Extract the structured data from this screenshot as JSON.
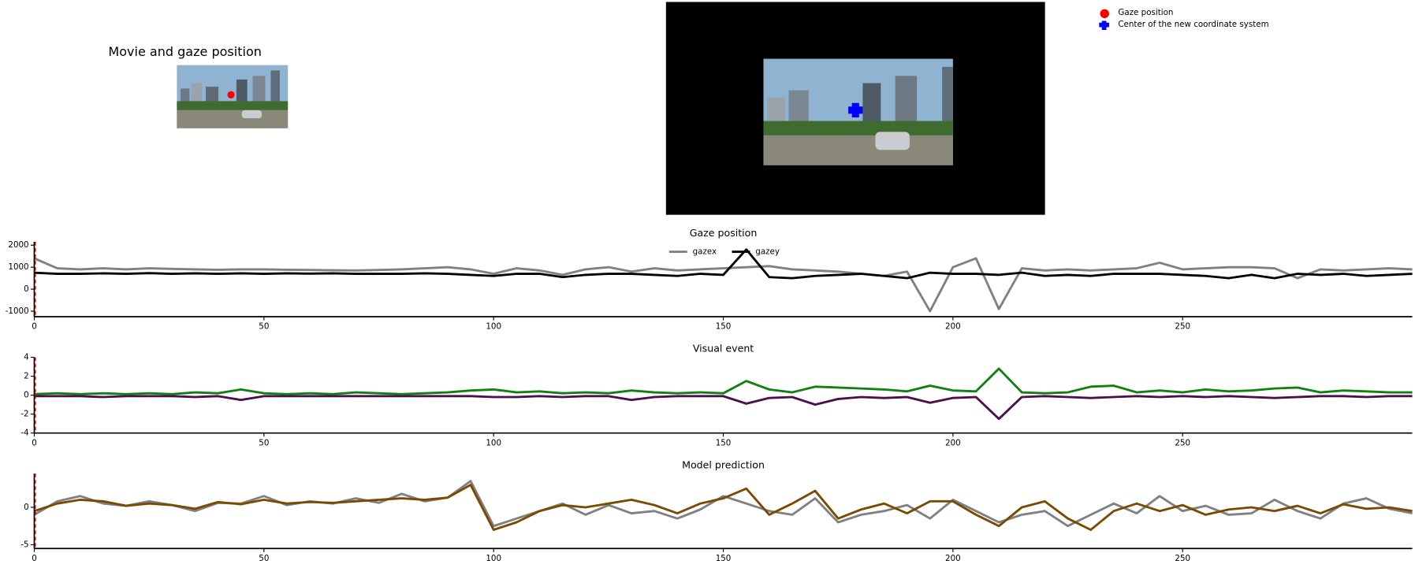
{
  "panels": {
    "movie_title": "Movie and gaze position",
    "legend": [
      "Gaze position",
      "Center of the new coordinate system"
    ]
  },
  "chart_data": [
    {
      "type": "line",
      "title": "Gaze position",
      "legend": "upper center",
      "x": [
        0,
        5,
        10,
        15,
        20,
        25,
        30,
        35,
        40,
        45,
        50,
        55,
        60,
        65,
        70,
        75,
        80,
        85,
        90,
        95,
        100,
        105,
        110,
        115,
        120,
        125,
        130,
        135,
        140,
        145,
        150,
        155,
        160,
        165,
        170,
        175,
        180,
        185,
        190,
        195,
        200,
        205,
        210,
        215,
        220,
        225,
        230,
        235,
        240,
        245,
        250,
        255,
        260,
        265,
        270,
        275,
        280,
        285,
        290,
        295,
        300
      ],
      "xlim": [
        0,
        300
      ],
      "xticks": [
        0,
        50,
        100,
        150,
        200,
        250
      ],
      "ylim": [
        -1250,
        2150
      ],
      "yticks": [
        -1000,
        0,
        1000,
        2000
      ],
      "series": [
        {
          "name": "gazex",
          "color": "#808080",
          "values": [
            1400,
            950,
            900,
            950,
            900,
            950,
            920,
            900,
            880,
            900,
            900,
            880,
            870,
            860,
            850,
            870,
            900,
            950,
            1000,
            900,
            700,
            950,
            850,
            650,
            900,
            1000,
            800,
            950,
            850,
            900,
            950,
            1000,
            1050,
            900,
            850,
            800,
            700,
            600,
            800,
            -1000,
            1000,
            1400,
            -900,
            950,
            850,
            900,
            850,
            900,
            950,
            1200,
            900,
            950,
            1000,
            1000,
            950,
            500,
            900,
            850,
            900,
            950,
            900
          ]
        },
        {
          "name": "gazey",
          "color": "#000000",
          "values": [
            750,
            700,
            700,
            720,
            700,
            730,
            700,
            720,
            700,
            720,
            700,
            720,
            710,
            720,
            700,
            700,
            700,
            720,
            700,
            650,
            600,
            700,
            700,
            550,
            650,
            700,
            700,
            650,
            600,
            700,
            650,
            1800,
            550,
            500,
            600,
            650,
            700,
            600,
            500,
            750,
            700,
            700,
            650,
            750,
            600,
            650,
            600,
            700,
            700,
            700,
            650,
            600,
            500,
            650,
            500,
            700,
            650,
            700,
            600,
            650,
            700
          ]
        }
      ]
    },
    {
      "type": "line",
      "title": "Visual event",
      "x": [
        0,
        5,
        10,
        15,
        20,
        25,
        30,
        35,
        40,
        45,
        50,
        55,
        60,
        65,
        70,
        75,
        80,
        85,
        90,
        95,
        100,
        105,
        110,
        115,
        120,
        125,
        130,
        135,
        140,
        145,
        150,
        155,
        160,
        165,
        170,
        175,
        180,
        185,
        190,
        195,
        200,
        205,
        210,
        215,
        220,
        225,
        230,
        235,
        240,
        245,
        250,
        255,
        260,
        265,
        270,
        275,
        280,
        285,
        290,
        295,
        300
      ],
      "xlim": [
        0,
        300
      ],
      "xticks": [
        0,
        50,
        100,
        150,
        200,
        250
      ],
      "ylim": [
        -4,
        4
      ],
      "yticks": [
        -4,
        -2,
        0,
        2,
        4
      ],
      "series": [
        {
          "color": "#4b0f4b",
          "values": [
            -0.1,
            -0.1,
            -0.1,
            -0.2,
            -0.1,
            -0.1,
            -0.1,
            -0.2,
            -0.1,
            -0.5,
            -0.1,
            -0.1,
            -0.1,
            -0.1,
            -0.1,
            -0.1,
            -0.1,
            -0.1,
            -0.1,
            -0.1,
            -0.2,
            -0.2,
            -0.1,
            -0.2,
            -0.1,
            -0.1,
            -0.5,
            -0.2,
            -0.1,
            -0.1,
            -0.1,
            -0.9,
            -0.3,
            -0.2,
            -1.0,
            -0.4,
            -0.2,
            -0.3,
            -0.2,
            -0.8,
            -0.3,
            -0.2,
            -2.5,
            -0.2,
            -0.1,
            -0.2,
            -0.3,
            -0.2,
            -0.1,
            -0.2,
            -0.1,
            -0.2,
            -0.1,
            -0.2,
            -0.3,
            -0.2,
            -0.1,
            -0.1,
            -0.2,
            -0.1,
            -0.1
          ]
        },
        {
          "color": "#108010",
          "values": [
            0.1,
            0.2,
            0.1,
            0.2,
            0.1,
            0.2,
            0.1,
            0.3,
            0.2,
            0.6,
            0.2,
            0.1,
            0.2,
            0.1,
            0.3,
            0.2,
            0.1,
            0.2,
            0.3,
            0.5,
            0.6,
            0.3,
            0.4,
            0.2,
            0.3,
            0.2,
            0.5,
            0.3,
            0.2,
            0.3,
            0.2,
            1.5,
            0.6,
            0.3,
            0.9,
            0.8,
            0.7,
            0.6,
            0.4,
            1.0,
            0.5,
            0.4,
            2.8,
            0.3,
            0.2,
            0.3,
            0.9,
            1.0,
            0.3,
            0.5,
            0.3,
            0.6,
            0.4,
            0.5,
            0.7,
            0.8,
            0.3,
            0.5,
            0.4,
            0.3,
            0.3
          ]
        }
      ]
    },
    {
      "type": "line",
      "title": "Model prediction",
      "x": [
        0,
        5,
        10,
        15,
        20,
        25,
        30,
        35,
        40,
        45,
        50,
        55,
        60,
        65,
        70,
        75,
        80,
        85,
        90,
        95,
        100,
        105,
        110,
        115,
        120,
        125,
        130,
        135,
        140,
        145,
        150,
        155,
        160,
        165,
        170,
        175,
        180,
        185,
        190,
        195,
        200,
        205,
        210,
        215,
        220,
        225,
        230,
        235,
        240,
        245,
        250,
        255,
        260,
        265,
        270,
        275,
        280,
        285,
        290,
        295,
        300
      ],
      "xlim": [
        0,
        300
      ],
      "xticks": [
        0,
        50,
        100,
        150,
        200,
        250
      ],
      "ylim": [
        -5.5,
        4.5
      ],
      "yticks": [
        -5,
        0
      ],
      "series": [
        {
          "color": "#808080",
          "values": [
            -1.0,
            0.8,
            1.5,
            0.5,
            0.2,
            0.8,
            0.3,
            -0.5,
            0.6,
            0.5,
            1.5,
            0.3,
            0.8,
            0.5,
            1.2,
            0.6,
            1.8,
            0.8,
            1.3,
            3.5,
            -2.5,
            -1.5,
            -0.5,
            0.5,
            -1.0,
            0.3,
            -0.8,
            -0.5,
            -1.5,
            -0.3,
            1.5,
            0.5,
            -0.5,
            -1.0,
            1.2,
            -2.0,
            -1.0,
            -0.5,
            0.3,
            -1.5,
            1.0,
            -0.5,
            -2.0,
            -1.0,
            -0.5,
            -2.5,
            -1.0,
            0.5,
            -0.8,
            1.5,
            -0.5,
            0.2,
            -1.0,
            -0.8,
            1.0,
            -0.5,
            -1.5,
            0.5,
            1.2,
            -0.2,
            -0.8
          ]
        },
        {
          "color": "#7a4a00",
          "values": [
            -0.5,
            0.5,
            1.0,
            0.8,
            0.2,
            0.5,
            0.3,
            -0.2,
            0.7,
            0.4,
            1.0,
            0.5,
            0.7,
            0.6,
            0.8,
            1.0,
            1.2,
            1.0,
            1.3,
            3.0,
            -3.0,
            -2.0,
            -0.5,
            0.3,
            0.0,
            0.5,
            1.0,
            0.3,
            -0.8,
            0.5,
            1.2,
            2.5,
            -1.0,
            0.5,
            2.2,
            -1.5,
            -0.3,
            0.5,
            -0.8,
            0.8,
            0.8,
            -1.0,
            -2.5,
            0.0,
            0.8,
            -1.5,
            -3.0,
            -0.5,
            0.5,
            -0.5,
            0.3,
            -1.0,
            -0.3,
            0.0,
            -0.5,
            0.2,
            -0.8,
            0.4,
            -0.2,
            0.0,
            -0.5
          ]
        }
      ]
    }
  ]
}
